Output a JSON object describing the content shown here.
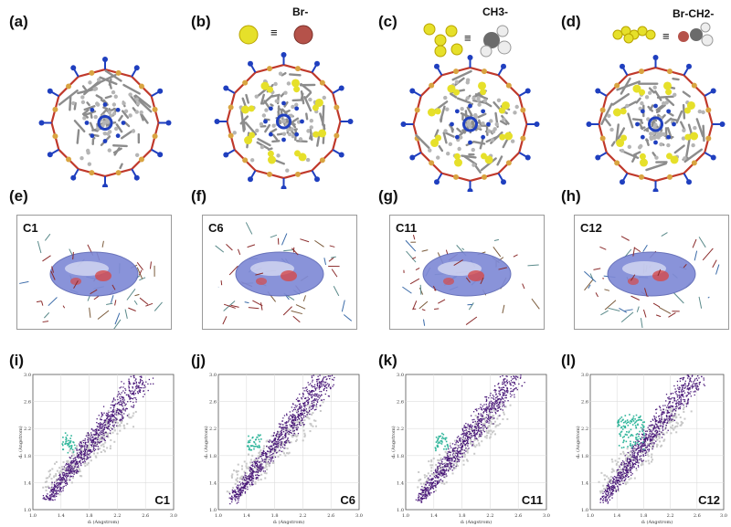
{
  "panels": {
    "row1": [
      {
        "id": "a",
        "label": "(a)"
      },
      {
        "id": "b",
        "label": "(b)",
        "legend": "Br-"
      },
      {
        "id": "c",
        "label": "(c)",
        "legend": "CH3-"
      },
      {
        "id": "d",
        "label": "(d)",
        "legend": "Br-CH2-"
      }
    ],
    "row2": [
      {
        "id": "e",
        "label": "(e)",
        "name": "C1"
      },
      {
        "id": "f",
        "label": "(f)",
        "name": "C6"
      },
      {
        "id": "g",
        "label": "(g)",
        "name": "C11"
      },
      {
        "id": "h",
        "label": "(h)",
        "name": "C12"
      }
    ],
    "row3": [
      {
        "id": "i",
        "label": "(i)",
        "name": "C1"
      },
      {
        "id": "j",
        "label": "(j)",
        "name": "C6"
      },
      {
        "id": "k",
        "label": "(k)",
        "name": "C11"
      },
      {
        "id": "l",
        "label": "(l)",
        "name": "C12"
      }
    ]
  },
  "equiv_symbol": "≡",
  "fingerprint": {
    "xlabel": "dᵢ (Angstrom)",
    "ylabel": "dₑ (Angstrom)",
    "x_ticks_a": [
      "1.0",
      "1.4",
      "1.8",
      "2.2",
      "2.6",
      "3.0"
    ],
    "x_ticks_b": [
      "1.0",
      "1.4",
      "1.8",
      "2.2",
      "2.6",
      "3.0"
    ],
    "x_ticks_c": [
      "1.0",
      "1.4",
      "1.8",
      "2.2",
      "2.6",
      "3.0"
    ],
    "x_ticks_d": [
      "1.0",
      "1.4",
      "1.8",
      "2.2",
      "2.6",
      "3.0"
    ],
    "y_ticks": [
      "3.0",
      "2.6",
      "2.2",
      "1.8",
      "1.4",
      "1.0"
    ]
  },
  "colors": {
    "oxygen": "#c0392b",
    "nitrogen": "#1f3fbf",
    "carbon": "#8c8c8c",
    "guest": "#e6e02a",
    "bromine": "#b5524a",
    "fingerprint": "#4b1a7a",
    "fingerprint_hot": "#2fb59a",
    "fingerprint_grey": "#c8c8c8"
  }
}
